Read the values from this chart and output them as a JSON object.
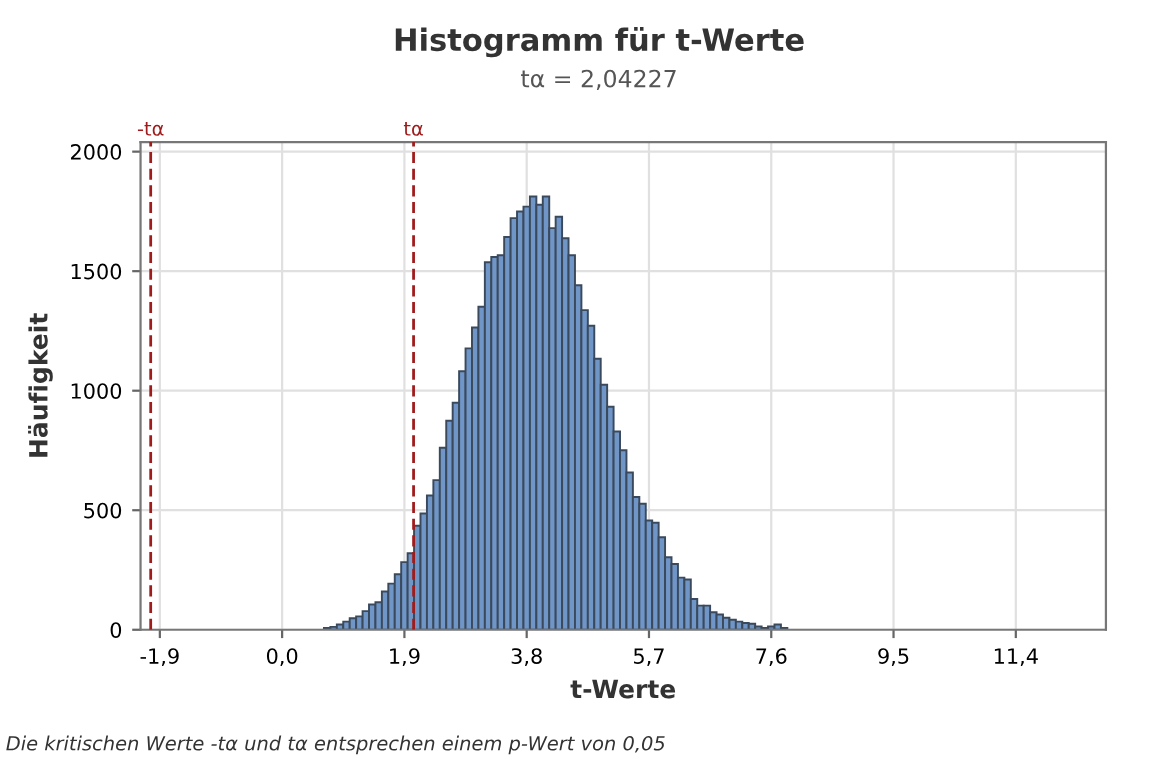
{
  "chart_data": {
    "type": "histogram",
    "title": "Histogramm für t-Werte",
    "subtitle": "tα = 2,04227",
    "xlabel": "t-Werte",
    "ylabel": "Häufigkeit",
    "annotations": [
      "Die kritischen Werte -tα und tα entsprechen einem p-Wert von 0,05"
    ],
    "color": "#7096c8",
    "bins": [
      -0.05,
      0.05,
      0.15,
      0.25,
      0.35,
      0.45,
      0.55,
      0.65,
      0.75,
      0.85,
      0.95,
      1.05,
      1.15,
      1.25,
      1.35,
      1.45,
      1.55,
      1.65,
      1.75,
      1.85,
      1.95,
      2.05,
      2.15,
      2.25,
      2.35,
      2.45,
      2.55,
      2.65,
      2.75,
      2.85,
      2.95,
      3.05,
      3.15,
      3.25,
      3.35,
      3.45,
      3.55,
      3.65,
      3.75,
      3.85,
      3.95,
      4.05,
      4.15,
      4.25,
      4.35,
      4.45,
      4.55,
      4.65,
      4.75,
      4.85,
      4.95,
      5.05,
      5.15,
      5.25,
      5.35,
      5.45,
      5.55,
      5.65,
      5.75,
      5.85,
      5.95,
      6.05,
      6.15,
      6.25,
      6.35,
      6.45,
      6.55,
      6.65,
      6.75,
      6.85,
      6.95,
      7.05,
      7.15,
      7.25,
      7.35,
      7.45,
      7.55,
      7.65,
      7.75,
      7.85,
      7.95,
      8.05,
      8.15,
      8.25,
      8.35,
      8.45,
      8.55,
      8.65,
      8.75,
      8.85,
      8.95,
      9.05,
      9.15,
      9.25,
      9.35,
      9.45,
      9.55,
      9.65,
      9.75,
      9.85,
      9.95,
      10.05,
      10.15,
      10.25,
      10.35,
      10.45,
      10.55,
      10.65,
      10.75,
      10.85,
      10.95,
      11.05,
      11.15,
      11.25,
      11.35,
      11.45,
      11.55,
      11.65,
      11.75,
      11.85,
      11.95,
      12.05,
      12.15,
      12.25,
      12.35,
      12.45,
      12.55
    ],
    "values": [
      0,
      0,
      0,
      0,
      0,
      0,
      0,
      8,
      12,
      22,
      34,
      48,
      56,
      78,
      106,
      115,
      160,
      193,
      232,
      283,
      320,
      435,
      486,
      562,
      626,
      761,
      874,
      950,
      1081,
      1177,
      1264,
      1351,
      1537,
      1559,
      1567,
      1643,
      1722,
      1750,
      1770,
      1812,
      1778,
      1812,
      1680,
      1728,
      1638,
      1567,
      1441,
      1337,
      1272,
      1134,
      1025,
      933,
      829,
      751,
      658,
      555,
      527,
      457,
      448,
      387,
      303,
      275,
      218,
      210,
      129,
      101,
      101,
      73,
      64,
      50,
      42,
      34,
      28,
      25,
      14,
      8,
      14,
      22,
      8,
      0,
      0,
      0,
      0,
      0,
      0,
      0,
      0,
      0,
      0,
      0,
      0,
      0,
      0,
      0,
      0,
      0,
      0,
      0,
      0,
      0,
      0,
      0,
      0,
      0,
      0,
      0,
      0,
      0,
      0,
      0,
      0,
      0,
      0,
      0,
      0,
      0,
      0,
      0,
      0,
      0,
      0,
      0,
      0,
      0,
      0,
      0
    ],
    "xlim": [
      -2.2,
      12.8
    ],
    "ylim": [
      0,
      2040
    ],
    "xticks": [
      {
        "value": -1.9,
        "label": "-1,9"
      },
      {
        "value": 0.0,
        "label": "0,0"
      },
      {
        "value": 1.9,
        "label": "1,9"
      },
      {
        "value": 3.8,
        "label": "3,8"
      },
      {
        "value": 5.7,
        "label": "5,7"
      },
      {
        "value": 7.6,
        "label": "7,6"
      },
      {
        "value": 9.5,
        "label": "9,5"
      },
      {
        "value": 11.4,
        "label": "11,4"
      }
    ],
    "yticks": [
      0,
      500,
      1000,
      1500,
      2000
    ],
    "grid": true,
    "ref_lines": [
      {
        "axis": "x",
        "value": -2.04227,
        "label": "-tα",
        "color": "#a01c1c",
        "line_style": "dashed"
      },
      {
        "axis": "x",
        "value": 2.04227,
        "label": "tα",
        "color": "#a01c1c",
        "line_style": "dashed"
      }
    ]
  }
}
